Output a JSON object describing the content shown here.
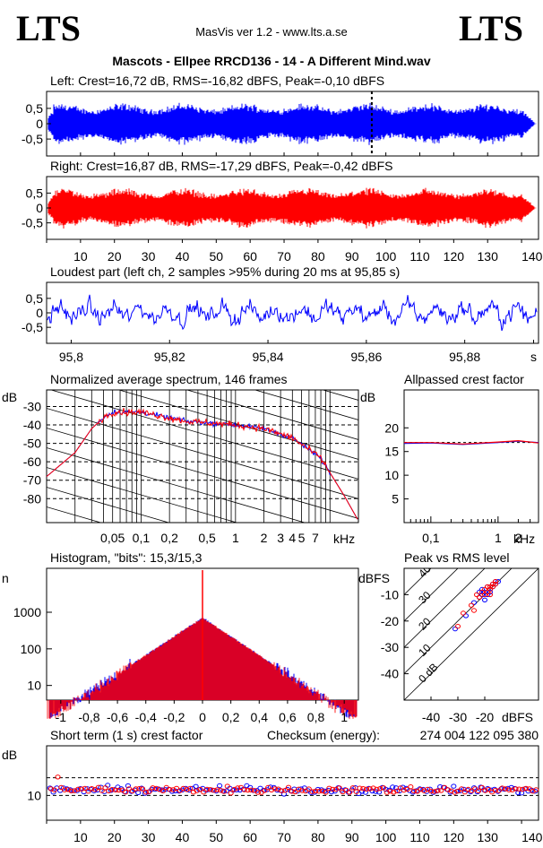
{
  "header": {
    "logo_left": "LTS",
    "logo_right": "LTS",
    "app_info": "MasVis ver 1.2 - www.lts.a.se",
    "track_title": "Mascots - Ellpee RRCD136 - 14 - A Different Mind.wav"
  },
  "colors": {
    "left_channel": "#0000ff",
    "right_channel": "#ff0000",
    "axis": "#000000"
  },
  "chart_data": [
    {
      "type": "area",
      "id": "left_waveform",
      "title": "Left: Crest=16,72 dB, RMS=-16,82 dBFS, Peak=-0,10 dBFS",
      "yticks": [
        "0,5",
        "0",
        "-0,5"
      ],
      "ylim": [
        -1,
        1
      ],
      "xlim": [
        0,
        145
      ],
      "marker_x": 95.85,
      "series": [
        {
          "values": {
            "envelope_peak": 0.62,
            "intro_seconds": 2,
            "fade_start": 140
          }
        }
      ]
    },
    {
      "type": "area",
      "id": "right_waveform",
      "title": "Right: Crest=16,87 dB, RMS=-17,29 dBFS, Peak=-0,42 dBFS",
      "yticks": [
        "0,5",
        "0",
        "-0,5"
      ],
      "ylim": [
        -1,
        1
      ],
      "xlim": [
        0,
        145
      ],
      "xticks": [
        "10",
        "20",
        "30",
        "40",
        "50",
        "60",
        "70",
        "80",
        "90",
        "100",
        "110",
        "120",
        "130",
        "140 s"
      ],
      "xtick_values": [
        10,
        20,
        30,
        40,
        50,
        60,
        70,
        80,
        90,
        100,
        110,
        120,
        130,
        140
      ]
    },
    {
      "type": "line",
      "id": "loudest_part",
      "title": "Loudest part (left  ch, 2 samples >95% during 20 ms at 95,85 s)",
      "yticks": [
        "0,5",
        "0",
        "-0,5"
      ],
      "ylim": [
        -1,
        1
      ],
      "xlim": [
        95.795,
        95.895
      ],
      "xticks": [
        "95,8",
        "95,82",
        "95,84",
        "95,86",
        "95,88",
        "s"
      ],
      "xtick_values": [
        95.8,
        95.82,
        95.84,
        95.86,
        95.88,
        95.894
      ]
    },
    {
      "type": "line",
      "id": "avg_spectrum",
      "title": "Normalized average spectrum, 146 frames",
      "ylabel": "dB",
      "yticks": [
        "-30",
        "-40",
        "-50",
        "-60",
        "-70",
        "-80"
      ],
      "ytick_values": [
        -30,
        -40,
        -50,
        -60,
        -70,
        -80
      ],
      "ylim": [
        -93,
        -21
      ],
      "xlabel": "kHz",
      "xticks": [
        "0,05",
        "0,1",
        "0,2",
        "0,5",
        "1",
        "2",
        "3",
        "4",
        "5",
        "7"
      ],
      "xtick_values": [
        0.05,
        0.1,
        0.2,
        0.5,
        1,
        2,
        3,
        4,
        5,
        7
      ],
      "xlim_log": [
        0.01,
        20
      ],
      "series": [
        {
          "x": [
            0.01,
            0.02,
            0.03,
            0.04,
            0.05,
            0.1,
            0.3,
            1,
            2,
            4,
            8,
            14,
            20
          ],
          "y": [
            -68,
            -55,
            -42,
            -36,
            -33,
            -33,
            -38,
            -40,
            -42,
            -47,
            -58,
            -78,
            -92
          ]
        },
        {
          "x": [
            0.01,
            0.02,
            0.03,
            0.04,
            0.05,
            0.1,
            0.3,
            1,
            2,
            4,
            8,
            14,
            20
          ],
          "y": [
            -68,
            -55,
            -42,
            -36,
            -33,
            -33,
            -38,
            -40,
            -42,
            -47,
            -58,
            -78,
            -92
          ]
        }
      ]
    },
    {
      "type": "line",
      "id": "allpassed_crest",
      "title": "Allpassed crest factor",
      "ylabel": "dB",
      "yticks": [
        "20",
        "15",
        "10",
        "5"
      ],
      "ytick_values": [
        20,
        15,
        10,
        5
      ],
      "ylim": [
        0,
        28
      ],
      "xlabel": "kHz",
      "xticks": [
        "0,1",
        "1",
        "2"
      ],
      "xtick_values": [
        0.1,
        1,
        2
      ],
      "xlim_log": [
        0.04,
        4
      ],
      "series": [
        {
          "x": [
            0.04,
            0.1,
            0.3,
            1,
            2,
            4
          ],
          "y": [
            16.7,
            16.8,
            16.5,
            16.9,
            17.2,
            16.9
          ]
        },
        {
          "x": [
            0.04,
            0.1,
            0.3,
            1,
            2,
            4
          ],
          "y": [
            16.9,
            16.9,
            16.6,
            17.0,
            17.3,
            16.8
          ]
        }
      ]
    },
    {
      "type": "line",
      "id": "histogram",
      "title": "Histogram, \"bits\": 15,3/15,3",
      "ylabel": "n",
      "yticks": [
        "1000",
        "100",
        "10"
      ],
      "ytick_values": [
        1000,
        100,
        10
      ],
      "ylog_range": [
        0.6,
        4.2
      ],
      "xticks": [
        "-1",
        "-0,8",
        "-0,6",
        "-0,4",
        "-0,2",
        "0",
        "0,2",
        "0,4",
        "0,6",
        "0,8",
        "1"
      ],
      "xtick_values": [
        -1,
        -0.8,
        -0.6,
        -0.4,
        -0.2,
        0,
        0.2,
        0.4,
        0.6,
        0.8,
        1
      ],
      "xlim": [
        -1.1,
        1.1
      ],
      "series": [
        {
          "values": {
            "peak_count": 700,
            "width_scale": 0.17
          }
        }
      ]
    },
    {
      "type": "scatter",
      "id": "peak_vs_rms",
      "title": "Peak vs RMS level",
      "ylabel": "dBFS",
      "xlabel": "dBFS",
      "yticks": [
        "-10",
        "-20",
        "-30",
        "-40"
      ],
      "ytick_values": [
        -10,
        -20,
        -30,
        -40
      ],
      "xticks": [
        "-40",
        "-30",
        "-20"
      ],
      "xtick_values": [
        -40,
        -30,
        -20
      ],
      "xlim": [
        -50,
        0
      ],
      "ylim": [
        -50,
        0
      ],
      "diagonal_labels": [
        "0 dB",
        "10",
        "20",
        "30",
        "40"
      ],
      "diagonal_values": [
        0,
        10,
        20,
        30,
        40
      ],
      "series": [
        {
          "x": [
            -31,
            -27,
            -24,
            -22,
            -21,
            -20,
            -19,
            -18,
            -17,
            -16,
            -20,
            -22,
            -19,
            -17,
            -18,
            -21,
            -16,
            -15
          ],
          "y": [
            -23,
            -18,
            -13,
            -11,
            -8,
            -9,
            -7,
            -8,
            -6,
            -5,
            -12,
            -9,
            -10,
            -7,
            -9,
            -10,
            -6,
            -5
          ]
        },
        {
          "x": [
            -30,
            -28,
            -25,
            -23,
            -21,
            -20,
            -19,
            -18,
            -17,
            -16,
            -22,
            -20,
            -18,
            -19,
            -17,
            -16,
            -18,
            -24
          ],
          "y": [
            -22,
            -17,
            -14,
            -10,
            -9,
            -8,
            -7,
            -7,
            -6,
            -5,
            -11,
            -10,
            -8,
            -9,
            -7,
            -6,
            -10,
            -16
          ]
        }
      ]
    },
    {
      "type": "scatter",
      "id": "short_term_crest",
      "title": "Short term (1 s) crest factor",
      "checksum_label": "Checksum (energy):",
      "checksum_value": "274 004 122 095 380",
      "ylabel": "dB",
      "yticks": [
        "10"
      ],
      "ytick_values": [
        10
      ],
      "ylim": [
        3,
        24
      ],
      "xlim": [
        0,
        145
      ],
      "xticks": [
        "10",
        "20",
        "30",
        "40",
        "50",
        "60",
        "70",
        "80",
        "90",
        "100",
        "110",
        "120",
        "130",
        "140 s"
      ],
      "xtick_values": [
        10,
        20,
        30,
        40,
        50,
        60,
        70,
        80,
        90,
        100,
        110,
        120,
        130,
        140
      ],
      "series": [
        {
          "values": {
            "mean_db": 11.6,
            "spread_db": 1.0,
            "points": 146
          }
        }
      ]
    }
  ]
}
